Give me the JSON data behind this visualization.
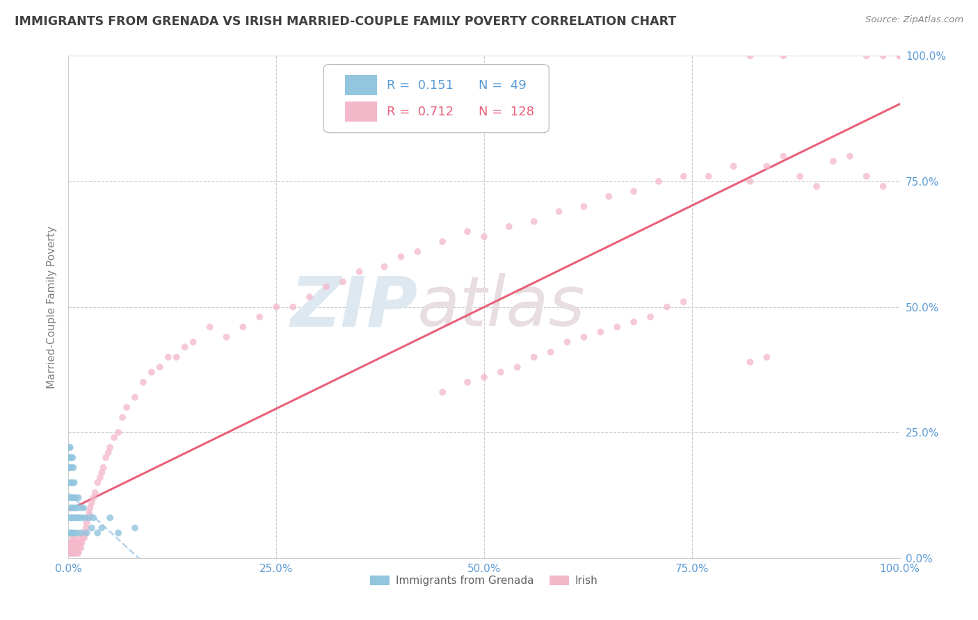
{
  "title": "IMMIGRANTS FROM GRENADA VS IRISH MARRIED-COUPLE FAMILY POVERTY CORRELATION CHART",
  "source_text": "Source: ZipAtlas.com",
  "ylabel": "Married-Couple Family Poverty",
  "xlim": [
    0,
    1.0
  ],
  "ylim": [
    0,
    1.0
  ],
  "xtick_labels": [
    "0.0%",
    "25.0%",
    "50.0%",
    "75.0%",
    "100.0%"
  ],
  "xtick_vals": [
    0.0,
    0.25,
    0.5,
    0.75,
    1.0
  ],
  "ytick_labels": [
    "0.0%",
    "25.0%",
    "50.0%",
    "75.0%",
    "100.0%"
  ],
  "ytick_vals": [
    0.0,
    0.25,
    0.5,
    0.75,
    1.0
  ],
  "R_grenada": 0.151,
  "N_grenada": 49,
  "R_irish": 0.712,
  "N_irish": 128,
  "color_grenada": "#92c5de",
  "color_irish": "#f4b8cb",
  "line_color_grenada": "#aacde8",
  "line_color_irish": "#e8607a",
  "background_color": "#ffffff",
  "grid_color": "#cccccc",
  "title_color": "#404040",
  "axis_label_color": "#808080",
  "tick_color": "#5b9bd5",
  "source_color": "#888888",
  "legend_R_color_grenada": "#5b9bd5",
  "legend_R_color_irish": "#e8607a",
  "grenada_x": [
    0.001,
    0.001,
    0.001,
    0.001,
    0.002,
    0.002,
    0.002,
    0.002,
    0.002,
    0.002,
    0.003,
    0.003,
    0.003,
    0.003,
    0.003,
    0.004,
    0.004,
    0.004,
    0.005,
    0.005,
    0.005,
    0.005,
    0.006,
    0.006,
    0.006,
    0.007,
    0.007,
    0.008,
    0.008,
    0.009,
    0.01,
    0.01,
    0.011,
    0.012,
    0.013,
    0.014,
    0.015,
    0.016,
    0.018,
    0.02,
    0.022,
    0.025,
    0.028,
    0.03,
    0.035,
    0.04,
    0.05,
    0.06,
    0.08
  ],
  "grenada_y": [
    0.2,
    0.22,
    0.18,
    0.15,
    0.08,
    0.12,
    0.2,
    0.05,
    0.18,
    0.22,
    0.1,
    0.15,
    0.08,
    0.2,
    0.05,
    0.12,
    0.18,
    0.08,
    0.1,
    0.15,
    0.05,
    0.2,
    0.08,
    0.12,
    0.18,
    0.05,
    0.15,
    0.1,
    0.08,
    0.12,
    0.05,
    0.1,
    0.08,
    0.12,
    0.08,
    0.1,
    0.05,
    0.08,
    0.1,
    0.08,
    0.05,
    0.08,
    0.06,
    0.08,
    0.05,
    0.06,
    0.08,
    0.05,
    0.06
  ],
  "irish_x": [
    0.001,
    0.001,
    0.002,
    0.002,
    0.002,
    0.003,
    0.003,
    0.003,
    0.003,
    0.004,
    0.004,
    0.004,
    0.004,
    0.005,
    0.005,
    0.005,
    0.005,
    0.006,
    0.006,
    0.006,
    0.007,
    0.007,
    0.007,
    0.008,
    0.008,
    0.008,
    0.009,
    0.009,
    0.01,
    0.01,
    0.011,
    0.011,
    0.012,
    0.012,
    0.013,
    0.014,
    0.015,
    0.015,
    0.016,
    0.017,
    0.018,
    0.019,
    0.02,
    0.021,
    0.022,
    0.023,
    0.025,
    0.026,
    0.028,
    0.03,
    0.032,
    0.035,
    0.038,
    0.04,
    0.042,
    0.045,
    0.048,
    0.05,
    0.055,
    0.06,
    0.065,
    0.07,
    0.08,
    0.09,
    0.1,
    0.11,
    0.12,
    0.13,
    0.14,
    0.15,
    0.17,
    0.19,
    0.21,
    0.23,
    0.25,
    0.27,
    0.29,
    0.31,
    0.33,
    0.35,
    0.38,
    0.4,
    0.42,
    0.45,
    0.48,
    0.5,
    0.53,
    0.56,
    0.59,
    0.62,
    0.65,
    0.68,
    0.71,
    0.74,
    0.77,
    0.8,
    0.82,
    0.84,
    0.86,
    0.88,
    0.9,
    0.92,
    0.94,
    0.96,
    0.98,
    1.0,
    0.82,
    0.86,
    0.96,
    0.98,
    1.0,
    0.82,
    0.84,
    0.45,
    0.48,
    0.5,
    0.52,
    0.54,
    0.56,
    0.58,
    0.6,
    0.62,
    0.64,
    0.66,
    0.68,
    0.7,
    0.72,
    0.74
  ],
  "irish_y": [
    0.01,
    0.02,
    0.01,
    0.02,
    0.03,
    0.01,
    0.02,
    0.01,
    0.03,
    0.01,
    0.02,
    0.01,
    0.03,
    0.01,
    0.02,
    0.01,
    0.04,
    0.01,
    0.02,
    0.03,
    0.01,
    0.02,
    0.03,
    0.01,
    0.02,
    0.04,
    0.01,
    0.02,
    0.01,
    0.03,
    0.01,
    0.02,
    0.01,
    0.03,
    0.02,
    0.03,
    0.02,
    0.04,
    0.03,
    0.04,
    0.05,
    0.04,
    0.05,
    0.06,
    0.07,
    0.08,
    0.09,
    0.1,
    0.11,
    0.12,
    0.13,
    0.15,
    0.16,
    0.17,
    0.18,
    0.2,
    0.21,
    0.22,
    0.24,
    0.25,
    0.28,
    0.3,
    0.32,
    0.35,
    0.37,
    0.38,
    0.4,
    0.4,
    0.42,
    0.43,
    0.46,
    0.44,
    0.46,
    0.48,
    0.5,
    0.5,
    0.52,
    0.54,
    0.55,
    0.57,
    0.58,
    0.6,
    0.61,
    0.63,
    0.65,
    0.64,
    0.66,
    0.67,
    0.69,
    0.7,
    0.72,
    0.73,
    0.75,
    0.76,
    0.76,
    0.78,
    0.75,
    0.78,
    0.8,
    0.76,
    0.74,
    0.79,
    0.8,
    0.76,
    0.74,
    1.0,
    1.0,
    1.0,
    1.0,
    1.0,
    1.0,
    0.39,
    0.4,
    0.33,
    0.35,
    0.36,
    0.37,
    0.38,
    0.4,
    0.41,
    0.43,
    0.44,
    0.45,
    0.46,
    0.47,
    0.48,
    0.5,
    0.51
  ],
  "watermark_zip_color": "#dde8f0",
  "watermark_atlas_color": "#e8dde0"
}
